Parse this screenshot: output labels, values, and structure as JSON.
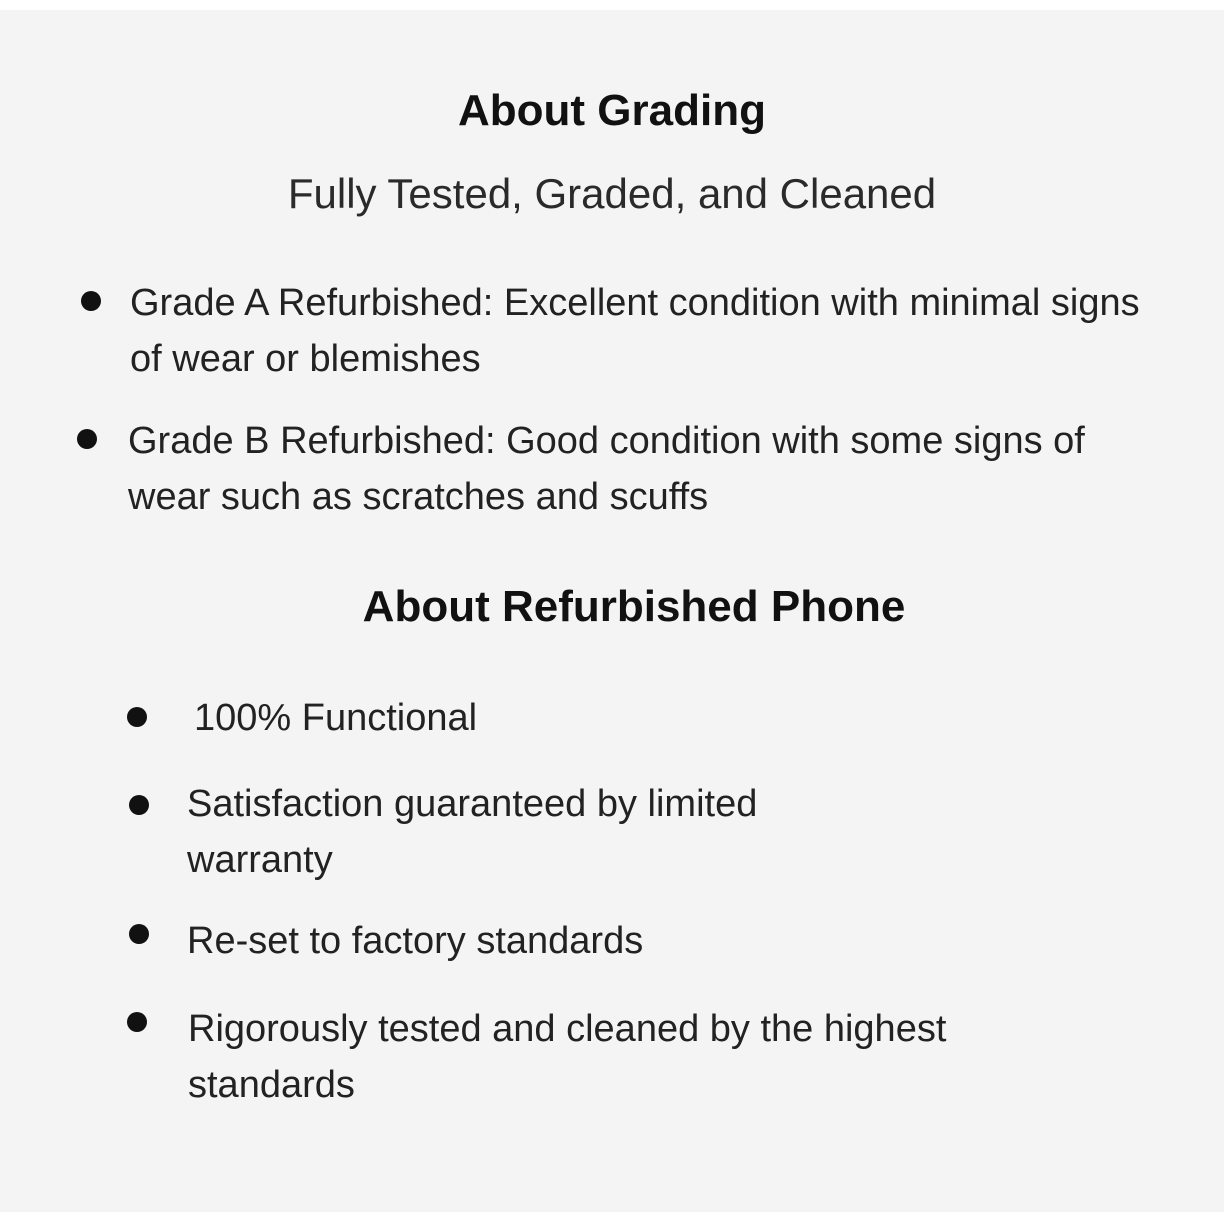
{
  "grading": {
    "title": "About Grading",
    "subtitle": "Fully Tested, Graded, and Cleaned",
    "items": [
      "Grade A Refurbished: Excellent condition with minimal signs of wear or blemishes",
      "Grade B Refurbished: Good condition with some signs of wear such as scratches and scuffs"
    ]
  },
  "refurbished": {
    "title": "About Refurbished Phone",
    "items": [
      "100% Functional",
      "Satisfaction guaranteed by limited warranty",
      "Re-set to factory standards",
      "Rigorously tested and cleaned by the highest standards"
    ]
  }
}
